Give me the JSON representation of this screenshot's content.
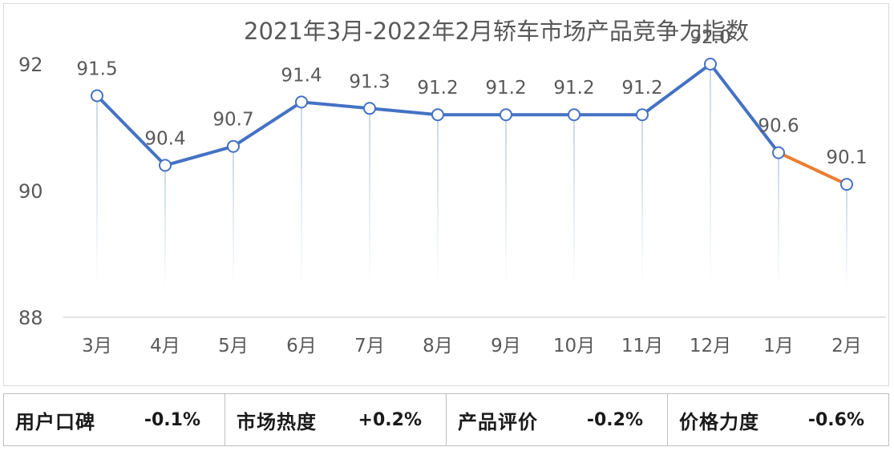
{
  "chart_data": {
    "type": "line",
    "title": "2021年3月-2022年2月轿车市场产品竞争力指数",
    "categories": [
      "3月",
      "4月",
      "5月",
      "6月",
      "7月",
      "8月",
      "9月",
      "10月",
      "11月",
      "12月",
      "1月",
      "2月"
    ],
    "series": [
      {
        "values": [
          91.5,
          90.4,
          90.7,
          91.4,
          91.3,
          91.2,
          91.2,
          91.2,
          91.2,
          92.0,
          90.6,
          90.1
        ]
      }
    ],
    "data_labels": [
      "91.5",
      "90.4",
      "90.7",
      "91.4",
      "91.3",
      "91.2",
      "91.2",
      "91.2",
      "91.2",
      "92.0",
      "90.6",
      "90.1"
    ],
    "yticks": [
      "88",
      "90",
      "92"
    ],
    "ylim": [
      88,
      92
    ],
    "grid": false,
    "colors": {
      "line": "#4472c4",
      "last_segment": "#ed7d31",
      "drop_line": "#c9d7e6"
    }
  },
  "metrics": [
    {
      "label": "用户口碑",
      "value": "-0.1%"
    },
    {
      "label": "市场热度",
      "value": "+0.2%"
    },
    {
      "label": "产品评价",
      "value": "-0.2%"
    },
    {
      "label": "价格力度",
      "value": "-0.6%"
    }
  ]
}
